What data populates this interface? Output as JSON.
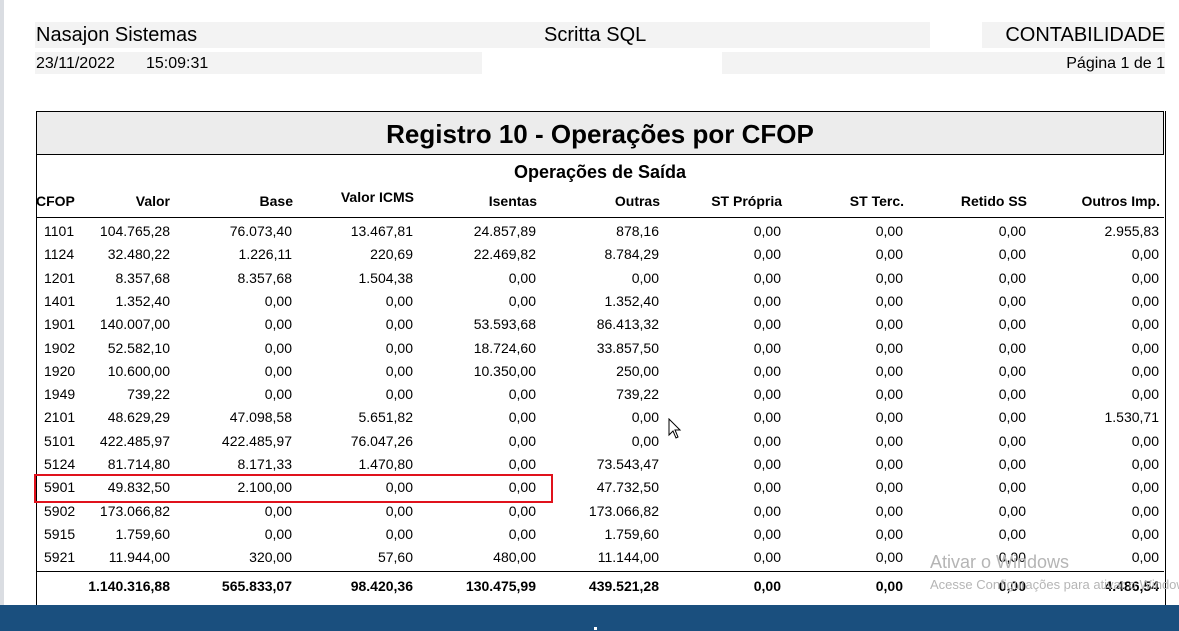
{
  "header": {
    "company": "Nasajon Sistemas",
    "app": "Scritta SQL",
    "department": "CONTABILIDADE",
    "date": "23/11/2022",
    "time": "15:09:31",
    "page": "Página 1 de 1"
  },
  "report": {
    "title": "Registro 10 - Operações por CFOP",
    "subtitle": "Operações de Saída",
    "columns": [
      "CFOP",
      "Valor",
      "Base",
      "Valor ICMS",
      "Isentas",
      "Outras",
      "ST Própria",
      "ST Terc.",
      "Retido SS",
      "Outros Imp."
    ],
    "rows": [
      [
        "1101",
        "104.765,28",
        "76.073,40",
        "13.467,81",
        "24.857,89",
        "878,16",
        "0,00",
        "0,00",
        "0,00",
        "2.955,83"
      ],
      [
        "1124",
        "32.480,22",
        "1.226,11",
        "220,69",
        "22.469,82",
        "8.784,29",
        "0,00",
        "0,00",
        "0,00",
        "0,00"
      ],
      [
        "1201",
        "8.357,68",
        "8.357,68",
        "1.504,38",
        "0,00",
        "0,00",
        "0,00",
        "0,00",
        "0,00",
        "0,00"
      ],
      [
        "1401",
        "1.352,40",
        "0,00",
        "0,00",
        "0,00",
        "1.352,40",
        "0,00",
        "0,00",
        "0,00",
        "0,00"
      ],
      [
        "1901",
        "140.007,00",
        "0,00",
        "0,00",
        "53.593,68",
        "86.413,32",
        "0,00",
        "0,00",
        "0,00",
        "0,00"
      ],
      [
        "1902",
        "52.582,10",
        "0,00",
        "0,00",
        "18.724,60",
        "33.857,50",
        "0,00",
        "0,00",
        "0,00",
        "0,00"
      ],
      [
        "1920",
        "10.600,00",
        "0,00",
        "0,00",
        "10.350,00",
        "250,00",
        "0,00",
        "0,00",
        "0,00",
        "0,00"
      ],
      [
        "1949",
        "739,22",
        "0,00",
        "0,00",
        "0,00",
        "739,22",
        "0,00",
        "0,00",
        "0,00",
        "0,00"
      ],
      [
        "2101",
        "48.629,29",
        "47.098,58",
        "5.651,82",
        "0,00",
        "0,00",
        "0,00",
        "0,00",
        "0,00",
        "1.530,71"
      ],
      [
        "5101",
        "422.485,97",
        "422.485,97",
        "76.047,26",
        "0,00",
        "0,00",
        "0,00",
        "0,00",
        "0,00",
        "0,00"
      ],
      [
        "5124",
        "81.714,80",
        "8.171,33",
        "1.470,80",
        "0,00",
        "73.543,47",
        "0,00",
        "0,00",
        "0,00",
        "0,00"
      ],
      [
        "5901",
        "49.832,50",
        "2.100,00",
        "0,00",
        "0,00",
        "47.732,50",
        "0,00",
        "0,00",
        "0,00",
        "0,00"
      ],
      [
        "5902",
        "173.066,82",
        "0,00",
        "0,00",
        "0,00",
        "173.066,82",
        "0,00",
        "0,00",
        "0,00",
        "0,00"
      ],
      [
        "5915",
        "1.759,60",
        "0,00",
        "0,00",
        "0,00",
        "1.759,60",
        "0,00",
        "0,00",
        "0,00",
        "0,00"
      ],
      [
        "5921",
        "11.944,00",
        "320,00",
        "57,60",
        "480,00",
        "11.144,00",
        "0,00",
        "0,00",
        "0,00",
        "0,00"
      ]
    ],
    "totals": [
      "",
      "1.140.316,88",
      "565.833,07",
      "98.420,36",
      "130.475,99",
      "439.521,28",
      "0,00",
      "0,00",
      "0,00",
      "4.486,54"
    ],
    "highlighted_cfop": "5901"
  },
  "watermark": {
    "line1": "Ativar o Windows",
    "line2": "Acesse Configurações para ativar o Windows."
  },
  "colors": {
    "highlight_border": "#e0121c",
    "taskbar": "#1a4f7e",
    "title_band": "#ececec"
  }
}
